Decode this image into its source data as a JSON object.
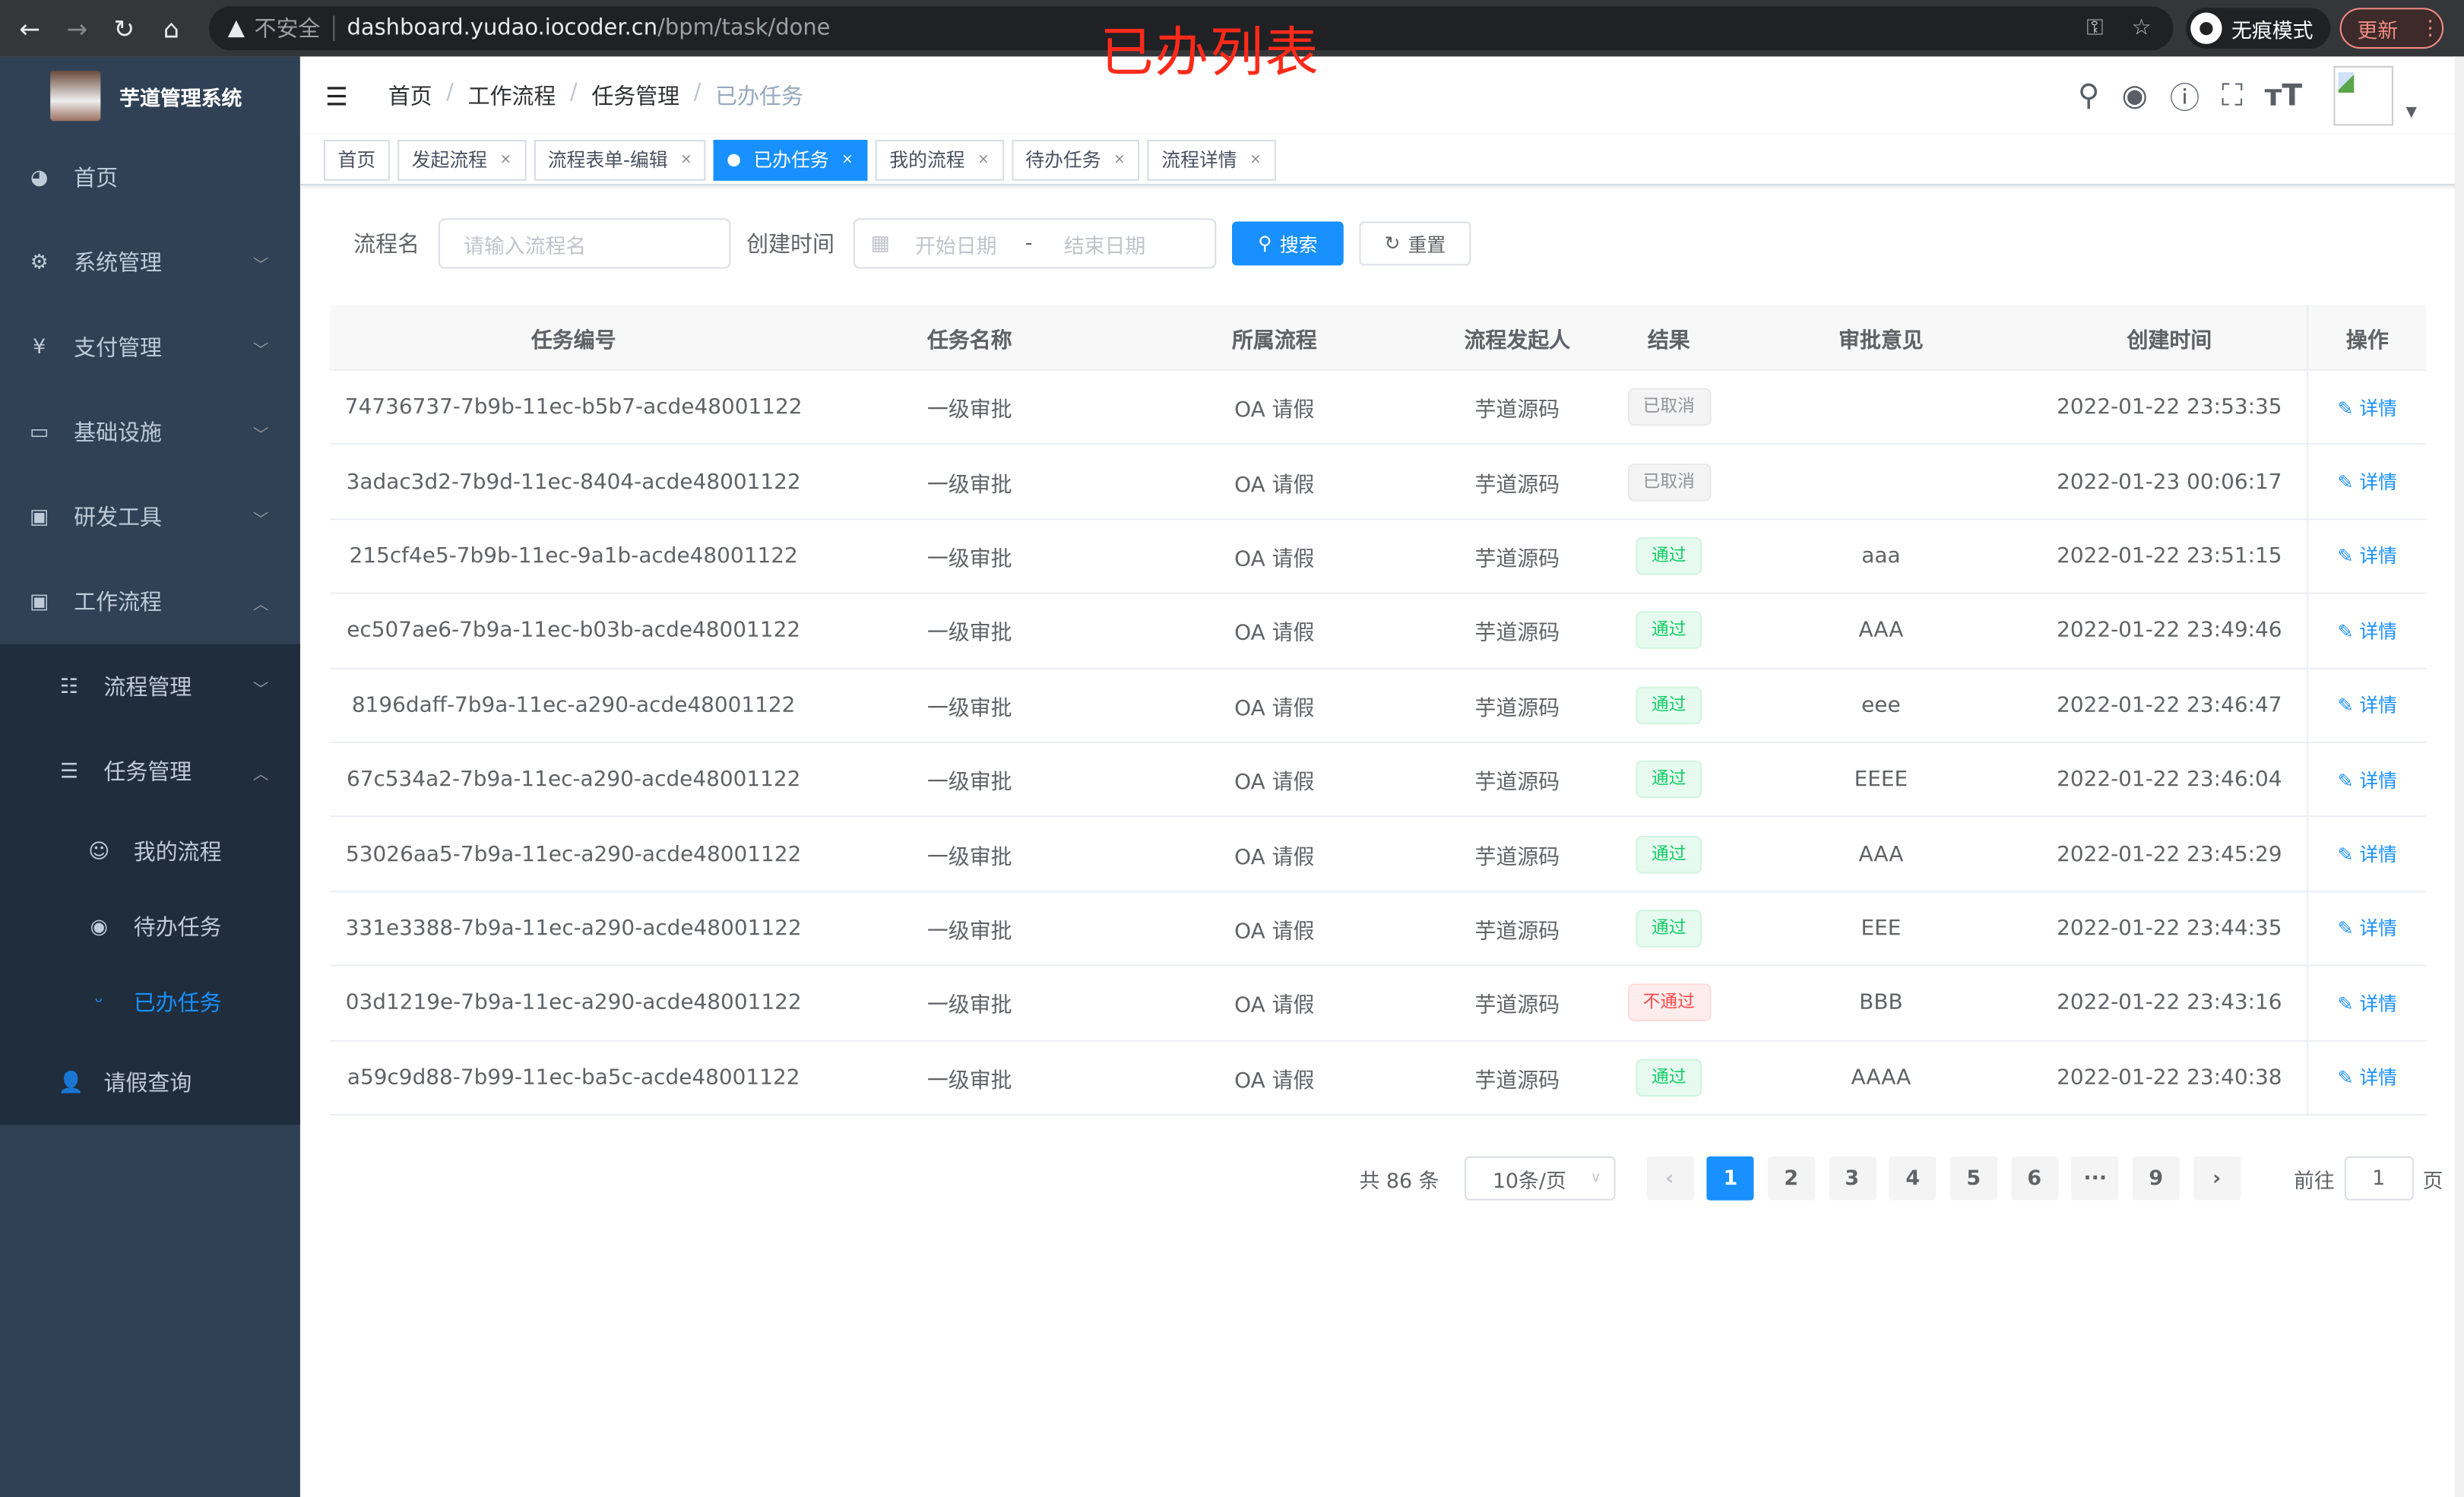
{
  "browser": {
    "insecure_label": "不安全",
    "url_host": "dashboard.yudao.iocoder.cn",
    "url_path": "/bpm/task/done",
    "incognito_label": "无痕模式",
    "update_label": "更新"
  },
  "overlay_title": "已办列表",
  "sidebar": {
    "app_title": "芋道管理系统",
    "items": [
      {
        "label": "首页",
        "icon": "dashboard-icon"
      },
      {
        "label": "系统管理",
        "icon": "gear-icon"
      },
      {
        "label": "支付管理",
        "icon": "yen-icon"
      },
      {
        "label": "基础设施",
        "icon": "monitor-icon"
      },
      {
        "label": "研发工具",
        "icon": "toolbox-icon"
      },
      {
        "label": "工作流程",
        "icon": "toolbox-icon"
      }
    ],
    "sub": [
      {
        "label": "流程管理"
      },
      {
        "label": "任务管理"
      }
    ],
    "sub3": [
      {
        "label": "我的流程"
      },
      {
        "label": "待办任务"
      },
      {
        "label": "已办任务",
        "active": true
      }
    ],
    "extra": {
      "label": "请假查询"
    }
  },
  "breadcrumb": [
    "首页",
    "工作流程",
    "任务管理",
    "已办任务"
  ],
  "tags": [
    {
      "label": "首页"
    },
    {
      "label": "发起流程"
    },
    {
      "label": "流程表单-编辑"
    },
    {
      "label": "已办任务",
      "active": true
    },
    {
      "label": "我的流程"
    },
    {
      "label": "待办任务"
    },
    {
      "label": "流程详情"
    }
  ],
  "filter": {
    "name_label": "流程名",
    "name_placeholder": "请输入流程名",
    "time_label": "创建时间",
    "start_placeholder": "开始日期",
    "sep": "-",
    "end_placeholder": "结束日期",
    "search": "搜索",
    "reset": "重置"
  },
  "table": {
    "headers": [
      "任务编号",
      "任务名称",
      "所属流程",
      "流程发起人",
      "结果",
      "审批意见",
      "创建时间",
      "操作"
    ],
    "rows": [
      [
        "74736737-7b9b-11ec-b5b7-acde48001122",
        "一级审批",
        "OA 请假",
        "芋道源码",
        "已取消",
        "",
        "2022-01-22 23:53:35",
        "info"
      ],
      [
        "3adac3d2-7b9d-11ec-8404-acde48001122",
        "一级审批",
        "OA 请假",
        "芋道源码",
        "已取消",
        "",
        "2022-01-23 00:06:17",
        "info"
      ],
      [
        "215cf4e5-7b9b-11ec-9a1b-acde48001122",
        "一级审批",
        "OA 请假",
        "芋道源码",
        "通过",
        "aaa",
        "2022-01-22 23:51:15",
        "success"
      ],
      [
        "ec507ae6-7b9a-11ec-b03b-acde48001122",
        "一级审批",
        "OA 请假",
        "芋道源码",
        "通过",
        "AAA",
        "2022-01-22 23:49:46",
        "success"
      ],
      [
        "8196daff-7b9a-11ec-a290-acde48001122",
        "一级审批",
        "OA 请假",
        "芋道源码",
        "通过",
        "eee",
        "2022-01-22 23:46:47",
        "success"
      ],
      [
        "67c534a2-7b9a-11ec-a290-acde48001122",
        "一级审批",
        "OA 请假",
        "芋道源码",
        "通过",
        "EEEE",
        "2022-01-22 23:46:04",
        "success"
      ],
      [
        "53026aa5-7b9a-11ec-a290-acde48001122",
        "一级审批",
        "OA 请假",
        "芋道源码",
        "通过",
        "AAA",
        "2022-01-22 23:45:29",
        "success"
      ],
      [
        "331e3388-7b9a-11ec-a290-acde48001122",
        "一级审批",
        "OA 请假",
        "芋道源码",
        "通过",
        "EEE",
        "2022-01-22 23:44:35",
        "success"
      ],
      [
        "03d1219e-7b9a-11ec-a290-acde48001122",
        "一级审批",
        "OA 请假",
        "芋道源码",
        "不通过",
        "BBB",
        "2022-01-22 23:43:16",
        "danger"
      ],
      [
        "a59c9d88-7b99-11ec-ba5c-acde48001122",
        "一级审批",
        "OA 请假",
        "芋道源码",
        "通过",
        "AAAA",
        "2022-01-22 23:40:38",
        "success"
      ]
    ],
    "action_label": "详情"
  },
  "pagination": {
    "total": "共 86 条",
    "page_size": "10条/页",
    "pages": [
      "1",
      "2",
      "3",
      "4",
      "5",
      "6",
      "···",
      "9"
    ],
    "current": "1",
    "goto_label": "前往",
    "goto_value": "1",
    "page_suffix": "页"
  }
}
